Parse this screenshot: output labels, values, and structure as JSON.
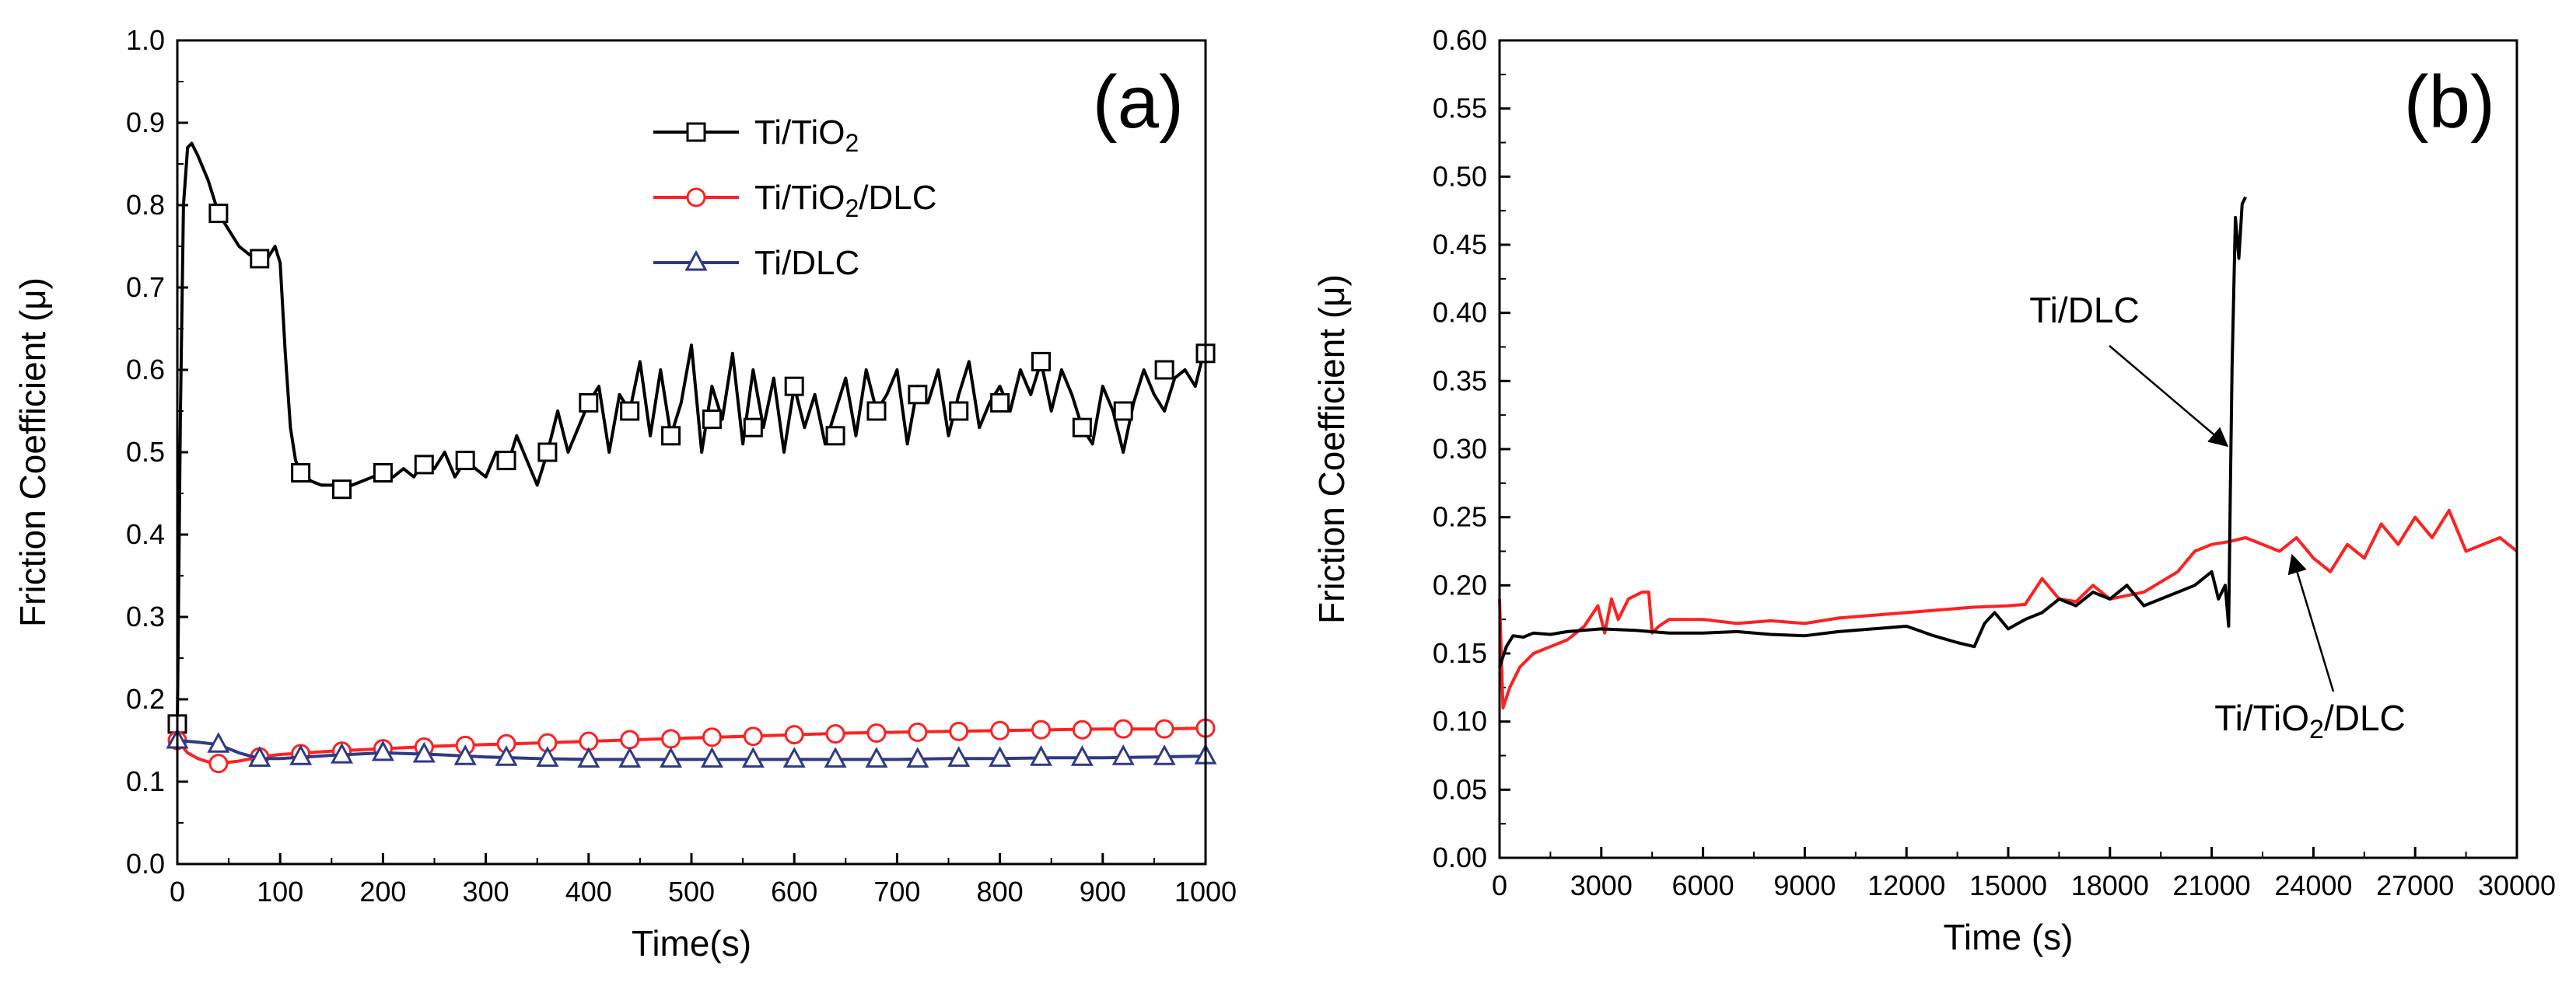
{
  "chart_data": [
    {
      "panel": "(a)",
      "type": "line",
      "xlabel": "Time(s)",
      "ylabel": "Friction Coefficient (μ)",
      "xlim": [
        0,
        1000
      ],
      "ylim": [
        0.0,
        1.0
      ],
      "xticks": [
        0,
        100,
        200,
        300,
        400,
        500,
        600,
        700,
        800,
        900,
        1000
      ],
      "xtick_labels": [
        "0",
        "100",
        "200",
        "300",
        "400",
        "500",
        "600",
        "700",
        "800",
        "900",
        "1000"
      ],
      "yticks": [
        0.0,
        0.1,
        0.2,
        0.3,
        0.4,
        0.5,
        0.6,
        0.7,
        0.8,
        0.9,
        1.0
      ],
      "ytick_labels": [
        "0.0",
        "0.1",
        "0.2",
        "0.3",
        "0.4",
        "0.5",
        "0.6",
        "0.7",
        "0.8",
        "0.9",
        "1.0"
      ],
      "legend_position": "top-center",
      "series": [
        {
          "name": "Ti/TiO2",
          "label_main": "Ti/TiO",
          "label_sub": "2",
          "label_tail": "",
          "color": "#000000",
          "marker": "square",
          "x": [
            0,
            3,
            6,
            10,
            14,
            20,
            30,
            40,
            50,
            60,
            70,
            80,
            85,
            90,
            95,
            100,
            105,
            110,
            115,
            120,
            130,
            140,
            150,
            160,
            170,
            180,
            190,
            200,
            210,
            220,
            230,
            240,
            250,
            260,
            270,
            280,
            290,
            300,
            310,
            320,
            330,
            340,
            350,
            360,
            370,
            380,
            390,
            400,
            410,
            420,
            430,
            440,
            450,
            460,
            470,
            480,
            490,
            500,
            510,
            520,
            530,
            540,
            550,
            560,
            570,
            580,
            590,
            600,
            610,
            620,
            630,
            640,
            650,
            660,
            670,
            680,
            690,
            700,
            710,
            720,
            730,
            740,
            750,
            760,
            770,
            780,
            790,
            800,
            810,
            820,
            830,
            840,
            850,
            860,
            870,
            880,
            890,
            900,
            910,
            920,
            930,
            940,
            950,
            960,
            970,
            980,
            990,
            1000
          ],
          "y": [
            0.17,
            0.55,
            0.8,
            0.87,
            0.875,
            0.86,
            0.83,
            0.79,
            0.77,
            0.75,
            0.74,
            0.735,
            0.73,
            0.74,
            0.75,
            0.73,
            0.62,
            0.53,
            0.49,
            0.475,
            0.465,
            0.46,
            0.46,
            0.455,
            0.46,
            0.465,
            0.47,
            0.475,
            0.47,
            0.48,
            0.47,
            0.49,
            0.48,
            0.5,
            0.47,
            0.49,
            0.48,
            0.47,
            0.5,
            0.48,
            0.52,
            0.49,
            0.46,
            0.5,
            0.55,
            0.5,
            0.53,
            0.56,
            0.58,
            0.5,
            0.57,
            0.55,
            0.61,
            0.52,
            0.6,
            0.52,
            0.56,
            0.63,
            0.5,
            0.58,
            0.54,
            0.62,
            0.51,
            0.6,
            0.53,
            0.59,
            0.5,
            0.58,
            0.53,
            0.57,
            0.51,
            0.55,
            0.59,
            0.52,
            0.6,
            0.55,
            0.57,
            0.6,
            0.51,
            0.58,
            0.56,
            0.6,
            0.52,
            0.57,
            0.61,
            0.53,
            0.56,
            0.58,
            0.55,
            0.6,
            0.57,
            0.61,
            0.55,
            0.6,
            0.57,
            0.53,
            0.51,
            0.58,
            0.55,
            0.5,
            0.56,
            0.6,
            0.57,
            0.55,
            0.59,
            0.6,
            0.58,
            0.63
          ],
          "marker_x": [
            0,
            40,
            80,
            120,
            160,
            200,
            240,
            280,
            320,
            360,
            400,
            440,
            480,
            520,
            560,
            600,
            640,
            680,
            720,
            760,
            800,
            840,
            880,
            920,
            960,
            1000
          ],
          "marker_y": [
            0.17,
            0.79,
            0.735,
            0.475,
            0.455,
            0.475,
            0.485,
            0.49,
            0.49,
            0.5,
            0.56,
            0.55,
            0.52,
            0.54,
            0.53,
            0.58,
            0.52,
            0.55,
            0.57,
            0.55,
            0.56,
            0.61,
            0.53,
            0.55,
            0.6,
            0.62
          ]
        },
        {
          "name": "Ti/TiO2/DLC",
          "label_main": "Ti/TiO",
          "label_sub": "2",
          "label_tail": "/DLC",
          "color": "#ff2020",
          "marker": "circle",
          "x": [
            0,
            10,
            20,
            30,
            40,
            60,
            80,
            100,
            150,
            200,
            250,
            300,
            350,
            400,
            450,
            500,
            550,
            600,
            650,
            700,
            750,
            800,
            850,
            900,
            950,
            1000
          ],
          "y": [
            0.15,
            0.135,
            0.128,
            0.124,
            0.122,
            0.125,
            0.13,
            0.133,
            0.137,
            0.14,
            0.143,
            0.145,
            0.147,
            0.149,
            0.151,
            0.153,
            0.155,
            0.157,
            0.159,
            0.16,
            0.161,
            0.162,
            0.163,
            0.164,
            0.164,
            0.165
          ],
          "marker_x": [
            0,
            40,
            80,
            120,
            160,
            200,
            240,
            280,
            320,
            360,
            400,
            440,
            480,
            520,
            560,
            600,
            640,
            680,
            720,
            760,
            800,
            840,
            880,
            920,
            960,
            1000
          ],
          "marker_y": [
            0.15,
            0.122,
            0.13,
            0.134,
            0.137,
            0.14,
            0.142,
            0.144,
            0.146,
            0.147,
            0.149,
            0.151,
            0.152,
            0.154,
            0.155,
            0.157,
            0.158,
            0.159,
            0.16,
            0.161,
            0.162,
            0.163,
            0.163,
            0.164,
            0.164,
            0.165
          ]
        },
        {
          "name": "Ti/DLC",
          "label_main": "Ti/DLC",
          "label_sub": "",
          "label_tail": "",
          "color": "#2e3a87",
          "marker": "triangle",
          "x": [
            0,
            20,
            40,
            60,
            80,
            100,
            150,
            200,
            250,
            300,
            350,
            400,
            450,
            500,
            550,
            600,
            650,
            700,
            750,
            800,
            850,
            900,
            950,
            1000
          ],
          "y": [
            0.15,
            0.148,
            0.145,
            0.135,
            0.128,
            0.128,
            0.132,
            0.135,
            0.133,
            0.13,
            0.128,
            0.127,
            0.127,
            0.127,
            0.127,
            0.127,
            0.127,
            0.127,
            0.128,
            0.128,
            0.129,
            0.129,
            0.13,
            0.131
          ],
          "marker_x": [
            0,
            40,
            80,
            120,
            160,
            200,
            240,
            280,
            320,
            360,
            400,
            440,
            480,
            520,
            560,
            600,
            640,
            680,
            720,
            760,
            800,
            840,
            880,
            920,
            960,
            1000
          ],
          "marker_y": [
            0.15,
            0.145,
            0.128,
            0.13,
            0.132,
            0.135,
            0.133,
            0.13,
            0.129,
            0.128,
            0.127,
            0.127,
            0.127,
            0.127,
            0.127,
            0.127,
            0.127,
            0.127,
            0.127,
            0.128,
            0.128,
            0.129,
            0.129,
            0.13,
            0.13,
            0.131
          ]
        }
      ]
    },
    {
      "panel": "(b)",
      "type": "line",
      "xlabel": "Time (s)",
      "ylabel": "Friction Coefficient (μ)",
      "xlim": [
        0,
        30000
      ],
      "ylim": [
        0.0,
        0.6
      ],
      "xticks": [
        0,
        3000,
        6000,
        9000,
        12000,
        15000,
        18000,
        21000,
        24000,
        27000,
        30000
      ],
      "xtick_labels": [
        "0",
        "3000",
        "6000",
        "9000",
        "12000",
        "15000",
        "18000",
        "21000",
        "24000",
        "27000",
        "30000"
      ],
      "yticks": [
        0.0,
        0.05,
        0.1,
        0.15,
        0.2,
        0.25,
        0.3,
        0.35,
        0.4,
        0.45,
        0.5,
        0.55,
        0.6
      ],
      "ytick_labels": [
        "0.00",
        "0.05",
        "0.10",
        "0.15",
        "0.20",
        "0.25",
        "0.30",
        "0.35",
        "0.40",
        "0.45",
        "0.50",
        "0.55",
        "0.60"
      ],
      "series": [
        {
          "name": "Ti/DLC",
          "color": "#000000",
          "x": [
            0,
            200,
            400,
            700,
            1000,
            1500,
            2000,
            3000,
            4000,
            5000,
            6000,
            7000,
            8000,
            9000,
            10000,
            11000,
            12000,
            12800,
            13500,
            14000,
            14300,
            14600,
            15000,
            15500,
            16000,
            16500,
            17000,
            17500,
            18000,
            18500,
            19000,
            19500,
            20000,
            20500,
            21000,
            21200,
            21400,
            21500,
            21550,
            21600,
            21700,
            21800,
            21900,
            22000
          ],
          "y": [
            0.14,
            0.155,
            0.163,
            0.162,
            0.165,
            0.164,
            0.166,
            0.168,
            0.167,
            0.165,
            0.165,
            0.166,
            0.164,
            0.163,
            0.166,
            0.168,
            0.17,
            0.163,
            0.158,
            0.155,
            0.172,
            0.18,
            0.168,
            0.175,
            0.18,
            0.19,
            0.185,
            0.195,
            0.19,
            0.2,
            0.185,
            0.19,
            0.195,
            0.2,
            0.21,
            0.19,
            0.2,
            0.17,
            0.27,
            0.36,
            0.47,
            0.44,
            0.48,
            0.485
          ]
        },
        {
          "name": "Ti/TiO2/DLC",
          "color": "#ff2020",
          "x": [
            0,
            100,
            300,
            600,
            1000,
            1500,
            2000,
            2500,
            2900,
            3100,
            3300,
            3500,
            3800,
            4200,
            4400,
            4500,
            4700,
            5000,
            6000,
            7000,
            8000,
            9000,
            10000,
            11000,
            12000,
            13000,
            14000,
            15000,
            15500,
            16000,
            16500,
            17000,
            17500,
            18000,
            19000,
            20000,
            20500,
            21000,
            21500,
            22000,
            22500,
            23000,
            23500,
            24000,
            24500,
            25000,
            25500,
            26000,
            26500,
            27000,
            27500,
            28000,
            28500,
            29000,
            29500,
            30000
          ],
          "y": [
            0.19,
            0.11,
            0.125,
            0.14,
            0.15,
            0.155,
            0.16,
            0.17,
            0.185,
            0.165,
            0.19,
            0.175,
            0.19,
            0.195,
            0.195,
            0.165,
            0.17,
            0.175,
            0.175,
            0.172,
            0.174,
            0.172,
            0.176,
            0.178,
            0.18,
            0.182,
            0.184,
            0.185,
            0.186,
            0.205,
            0.19,
            0.188,
            0.2,
            0.19,
            0.195,
            0.21,
            0.225,
            0.23,
            0.232,
            0.235,
            0.23,
            0.225,
            0.235,
            0.22,
            0.21,
            0.23,
            0.22,
            0.245,
            0.23,
            0.25,
            0.235,
            0.255,
            0.225,
            0.23,
            0.235,
            0.225
          ]
        }
      ],
      "annotations": [
        {
          "text": "Ti/DLC",
          "target_x": 21500,
          "target_y": 0.3
        },
        {
          "main": "Ti/TiO",
          "sub": "2",
          "tail": "/DLC",
          "target_x": 23300,
          "target_y": 0.225
        }
      ]
    }
  ]
}
